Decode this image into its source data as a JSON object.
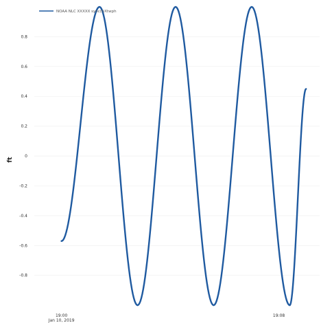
{
  "chart_data": {
    "type": "line",
    "title": "",
    "xlabel": "",
    "ylabel": "ft",
    "x_axis_type": "time",
    "x_range": [
      "2019-01-10T18:59:00",
      "2019-01-10T19:09:30"
    ],
    "xticks": [
      {
        "x": "2019-01-10T19:00:00",
        "label": "19:00",
        "sublabel": "Jan 10, 2019"
      },
      {
        "x": "2019-01-10T19:08:00",
        "label": "19:08",
        "sublabel": ""
      }
    ],
    "ylim": [
      -1.05,
      1.0
    ],
    "yticks": [
      -0.8,
      -0.6,
      -0.4,
      -0.2,
      0,
      0.2,
      0.4,
      0.6,
      0.8
    ],
    "ytick_labels": [
      "-0.8",
      "-0.6",
      "-0.4",
      "-0.2",
      "0",
      "0.2",
      "0.4",
      "0.6",
      "0.8"
    ],
    "grid": true,
    "legend_position": "top-left",
    "series": [
      {
        "name": "NOAA NLC XXXXX sync(t)Xtwph",
        "color": "#1f5aa0",
        "x": [
          "2019-01-10T19:00:00",
          "2019-01-10T19:01:24",
          "2019-01-10T19:02:48",
          "2019-01-10T19:04:12",
          "2019-01-10T19:05:36",
          "2019-01-10T19:07:00",
          "2019-01-10T19:08:24",
          "2019-01-10T19:09:00"
        ],
        "y": [
          -0.57,
          1.0,
          -1.0,
          1.0,
          -1.0,
          1.0,
          -1.0,
          0.45
        ]
      }
    ]
  }
}
